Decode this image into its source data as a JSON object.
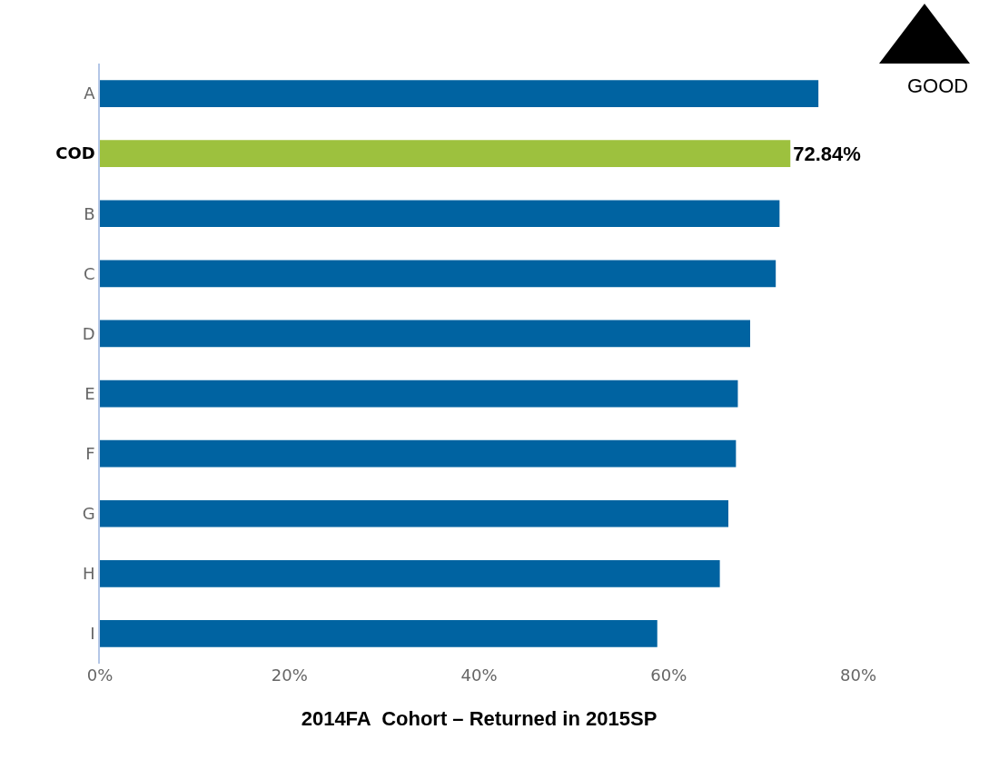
{
  "chart_data": {
    "type": "bar",
    "orientation": "horizontal",
    "xlabel": "2014FA  Cohort – Returned in 2015SP",
    "categories": [
      "A",
      "COD",
      "B",
      "C",
      "D",
      "E",
      "F",
      "G",
      "H",
      "I"
    ],
    "values": [
      75.8,
      72.84,
      71.7,
      71.3,
      68.6,
      67.3,
      67.1,
      66.3,
      65.4,
      58.8
    ],
    "colors": [
      "#0063a1",
      "#9dc13e",
      "#0063a1",
      "#0063a1",
      "#0063a1",
      "#0063a1",
      "#0063a1",
      "#0063a1",
      "#0063a1",
      "#0063a1"
    ],
    "value_labels": [
      null,
      "72.84%",
      null,
      null,
      null,
      null,
      null,
      null,
      null,
      null
    ],
    "xlim": [
      0,
      80
    ],
    "xticks": [
      {
        "value": 0,
        "label": "0%"
      },
      {
        "value": 20,
        "label": "20%"
      },
      {
        "value": 40,
        "label": "40%"
      },
      {
        "value": 60,
        "label": "60%"
      },
      {
        "value": 80,
        "label": "80%"
      }
    ],
    "annotations": [
      "GOOD"
    ],
    "grid": false
  }
}
